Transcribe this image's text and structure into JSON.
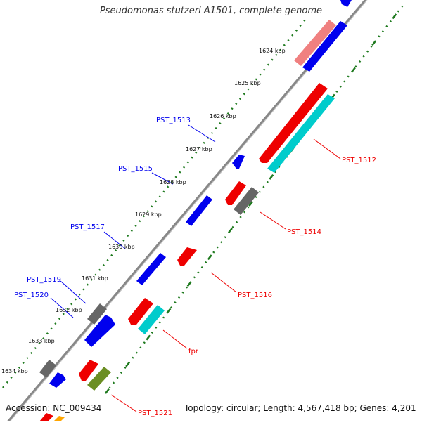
{
  "title": "Pseudomonas stutzeri A1501, complete genome",
  "footer": {
    "accession": "Accession: NC_009434",
    "summary": "Topology: circular; Length: 4,567,418 bp; Genes: 4,201"
  },
  "colors": {
    "backbone": "#888888",
    "tick": "#1f7a1f",
    "forward_gene": "#0000ee",
    "reverse_gene": "#ee0000",
    "other_gene": "#666666",
    "cyan_gene": "#00cccc",
    "olive_gene": "#6b8e23",
    "faded_gene": "#f08080"
  },
  "kbp_labels": [
    "1624 kbp",
    "1625 kbp",
    "1626 kbp",
    "1627 kbp",
    "1628 kbp",
    "1629 kbp",
    "1630 kbp",
    "1631 kbp",
    "1632 kbp",
    "1633 kbp",
    "1634 kbp"
  ],
  "gene_labels": [
    {
      "text": "PST_1513",
      "color": "blue"
    },
    {
      "text": "PST_1515",
      "color": "blue"
    },
    {
      "text": "PST_1517",
      "color": "blue"
    },
    {
      "text": "PST_1519",
      "color": "blue"
    },
    {
      "text": "PST_1520",
      "color": "blue"
    },
    {
      "text": "PST_1512",
      "color": "red"
    },
    {
      "text": "PST_1514",
      "color": "red"
    },
    {
      "text": "PST_1516",
      "color": "red"
    },
    {
      "text": "fpr",
      "color": "red"
    },
    {
      "text": "PST_1521",
      "color": "red"
    }
  ]
}
